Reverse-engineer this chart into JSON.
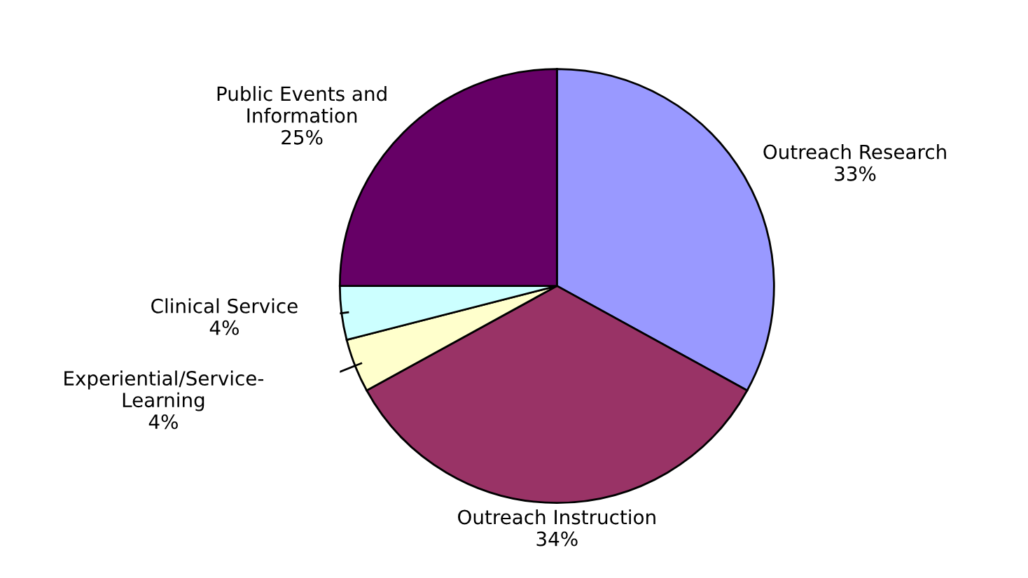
{
  "chart_data": {
    "type": "pie",
    "categories": [
      "Outreach Research",
      "Outreach Instruction",
      "Experiential/Service-\nLearning",
      "Clinical Service",
      "Public Events and\nInformation"
    ],
    "values": [
      33,
      34,
      4,
      4,
      25
    ],
    "value_labels": [
      "33%",
      "34%",
      "4%",
      "4%",
      "25%"
    ],
    "colors": [
      "#9999ff",
      "#993366",
      "#ffffcc",
      "#ccffff",
      "#660066"
    ],
    "legend": false
  }
}
